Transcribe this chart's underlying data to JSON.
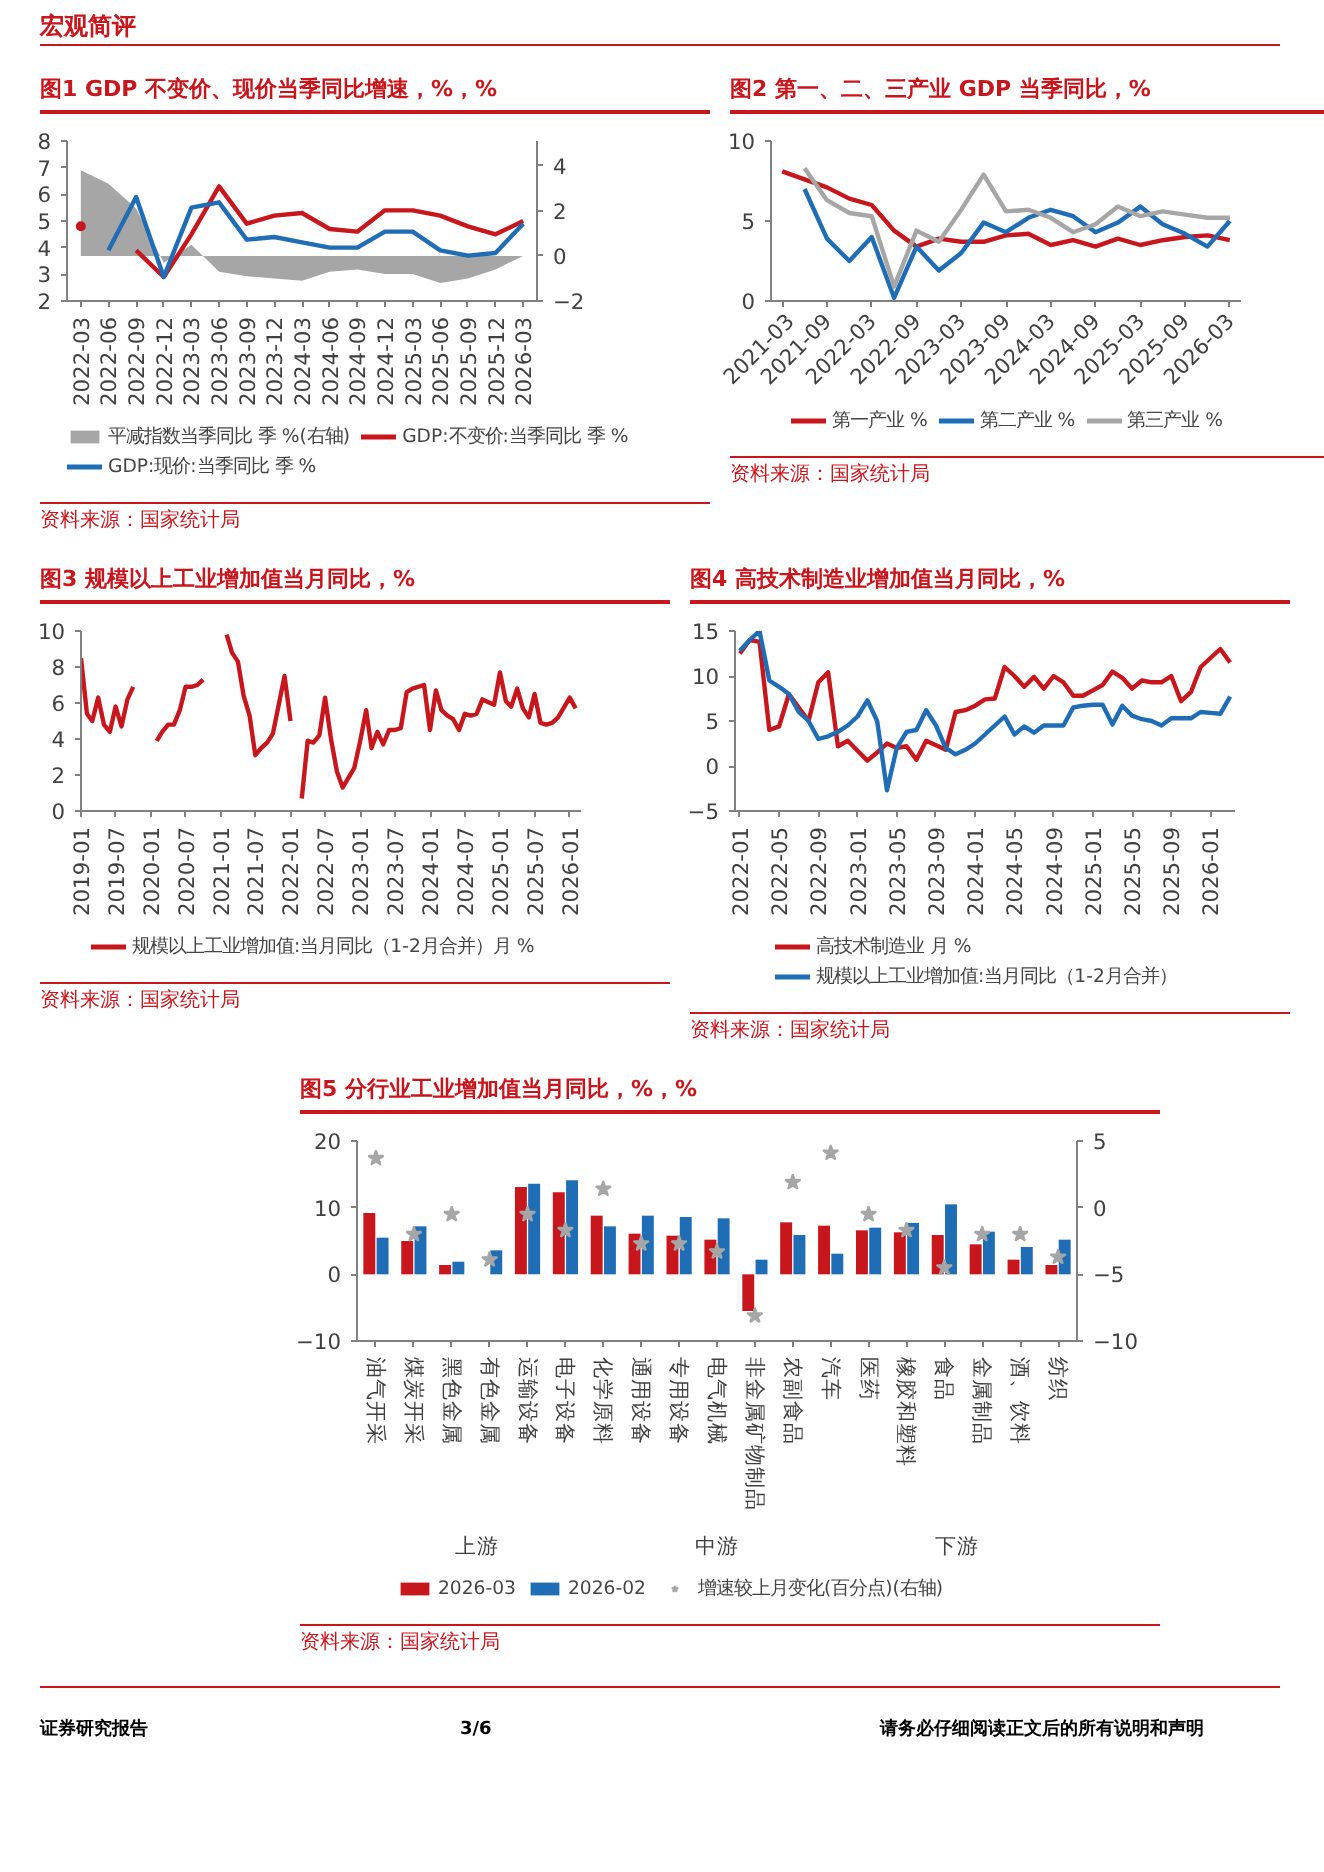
{
  "chart_data": [
    {
      "type": "line",
      "title": "图1 GDP 不变价、现价当季同比增速，%，%",
      "categories": [
        "2022-03",
        "2022-06",
        "2022-09",
        "2022-12",
        "2023-03",
        "2023-06",
        "2023-09",
        "2023-12",
        "2024-03",
        "2024-06",
        "2024-09",
        "2024-12",
        "2025-03",
        "2025-06",
        "2025-09",
        "2025-12",
        "2026-03"
      ],
      "series": [
        {
          "name": "平减指数当季同比 季 %(右轴)",
          "type": "area",
          "axis": "y2",
          "color": "#a6a6a6",
          "values": [
            3.8,
            3.2,
            2.1,
            -0.3,
            0.5,
            -0.7,
            -0.9,
            -1.0,
            -1.1,
            -0.7,
            -0.6,
            -0.8,
            -0.8,
            -1.2,
            -1.0,
            -0.6,
            0.0
          ]
        },
        {
          "name": "GDP:不变价:当季同比 季 %",
          "color": "#c8161d",
          "values": [
            4.8,
            null,
            3.9,
            2.9,
            4.5,
            6.3,
            4.9,
            5.2,
            5.3,
            4.7,
            4.6,
            5.4,
            5.4,
            5.2,
            4.8,
            4.5,
            5.0
          ]
        },
        {
          "name": "GDP:现价:当季同比 季 %",
          "color": "#1f6db5",
          "values": [
            null,
            3.9,
            5.9,
            2.9,
            5.5,
            5.7,
            4.3,
            4.4,
            4.2,
            4.0,
            4.0,
            4.6,
            4.6,
            3.9,
            3.7,
            3.8,
            4.9
          ]
        }
      ],
      "ylim": [
        2,
        8
      ],
      "yticks": [
        2,
        3,
        4,
        5,
        6,
        7,
        8
      ],
      "y2lim": [
        -2,
        5.1
      ],
      "y2ticks": [
        -2,
        0,
        2,
        4
      ],
      "legend": "bottom",
      "annotations": [
        "资料来源：国家统计局"
      ]
    },
    {
      "type": "line",
      "title": "图2 第一、二、三产业 GDP 当季同比，%",
      "categories": [
        "2021-03",
        null,
        "2021-09",
        null,
        "2022-03",
        null,
        "2022-09",
        null,
        "2023-03",
        null,
        "2023-09",
        null,
        "2024-03",
        null,
        "2024-09",
        null,
        "2025-03",
        null,
        "2025-09",
        null,
        "2026-03"
      ],
      "series": [
        {
          "name": "第一产业 %",
          "color": "#c8161d",
          "values": [
            8.1,
            7.6,
            7.1,
            6.4,
            6.0,
            4.4,
            3.4,
            3.9,
            3.7,
            3.7,
            4.1,
            4.2,
            3.5,
            3.8,
            3.4,
            3.9,
            3.5,
            3.8,
            4.0,
            4.1,
            3.8
          ]
        },
        {
          "name": "第二产业 %",
          "color": "#1f6db5",
          "values": [
            null,
            7.0,
            3.9,
            2.5,
            4.0,
            0.2,
            3.4,
            1.9,
            3.0,
            4.9,
            4.3,
            5.2,
            5.7,
            5.3,
            4.3,
            4.9,
            5.9,
            4.8,
            4.2,
            3.4,
            5.0
          ]
        },
        {
          "name": "第三产业 %",
          "color": "#a6a6a6",
          "values": [
            null,
            8.3,
            6.3,
            5.5,
            5.3,
            0.9,
            4.4,
            3.7,
            5.7,
            7.9,
            5.6,
            5.7,
            5.2,
            4.3,
            4.8,
            5.9,
            5.3,
            5.6,
            5.4,
            5.2,
            5.2
          ]
        }
      ],
      "ylim": [
        0,
        10
      ],
      "yticks": [
        0,
        5,
        10
      ],
      "legend": "bottom",
      "annotations": [
        "资料来源：国家统计局"
      ]
    },
    {
      "type": "line",
      "title": "图3 规模以上工业增加值当月同比，%",
      "x": [
        "2019-01",
        "2019-02",
        "2019-03",
        "2019-04",
        "2019-05",
        "2019-06",
        "2019-07",
        "2019-08",
        "2019-09",
        "2019-10",
        "2019-12",
        "2020-01",
        "2020-02",
        "2020-03",
        "2020-04",
        "2020-05",
        "2020-06",
        "2020-07",
        "2020-08",
        "2020-09",
        "2020-10",
        "2020-12",
        "2021-01",
        "2021-02",
        "2021-03",
        "2021-04",
        "2021-05",
        "2021-06",
        "2021-07",
        "2021-08",
        "2021-09",
        "2021-10",
        "2021-12",
        "2022-01",
        "2022-02",
        "2022-03",
        "2022-04",
        "2022-05",
        "2022-06",
        "2022-07",
        "2022-08",
        "2022-09",
        "2022-10",
        "2022-12",
        "2023-01",
        "2023-02",
        "2023-03",
        "2023-04",
        "2023-05",
        "2023-06",
        "2023-07",
        "2023-08",
        "2023-09",
        "2023-10",
        "2023-12",
        "2024-01",
        "2024-02",
        "2024-03",
        "2024-04",
        "2024-05",
        "2024-06",
        "2024-07",
        "2024-08",
        "2024-09",
        "2024-10",
        "2024-12",
        "2025-01",
        "2025-02",
        "2025-03",
        "2025-04",
        "2025-05",
        "2025-06",
        "2025-07",
        "2025-08",
        "2025-09",
        "2025-10",
        "2025-11",
        "2026-01",
        "2026-02"
      ],
      "series": [
        {
          "name": "规模以上工业增加值:当月同比（1-2月合并）月 %",
          "color": "#c8161d",
          "values": [
            8.5,
            5.4,
            5.0,
            6.3,
            4.8,
            4.4,
            5.8,
            4.7,
            6.2,
            6.9,
            null,
            null,
            3.9,
            4.4,
            4.8,
            4.8,
            5.6,
            6.9,
            6.9,
            7.0,
            7.3,
            null,
            null,
            9.8,
            8.8,
            8.3,
            6.4,
            5.3,
            3.1,
            3.5,
            3.8,
            4.3,
            7.5,
            5.0,
            null,
            0.7,
            3.9,
            3.8,
            4.2,
            6.3,
            4.0,
            2.2,
            1.3,
            2.4,
            3.9,
            5.6,
            3.5,
            4.4,
            3.7,
            4.5,
            4.5,
            4.6,
            6.6,
            6.8,
            7.0,
            4.5,
            6.7,
            5.6,
            5.3,
            5.1,
            4.5,
            5.4,
            5.3,
            5.4,
            6.2,
            5.9,
            7.7,
            6.1,
            5.8,
            6.8,
            5.7,
            5.2,
            6.5,
            4.9,
            4.8,
            4.9,
            5.2,
            6.3,
            5.7
          ]
        }
      ],
      "xlim": [
        "2019-01",
        "2026-03"
      ],
      "xticks": [
        "2019-01",
        "2019-07",
        "2020-01",
        "2020-07",
        "2021-01",
        "2021-07",
        "2022-01",
        "2022-07",
        "2023-01",
        "2023-07",
        "2024-01",
        "2024-07",
        "2025-01",
        "2025-07",
        "2026-01"
      ],
      "ylim": [
        0,
        10
      ],
      "yticks": [
        0,
        2,
        4,
        6,
        8,
        10
      ],
      "legend": "bottom",
      "annotations": [
        "资料来源：国家统计局"
      ]
    },
    {
      "type": "line",
      "title": "图4 高技术制造业增加值当月同比，%",
      "categories": [
        "2022-01",
        null,
        null,
        null,
        "2022-05",
        null,
        null,
        null,
        "2022-09",
        null,
        null,
        null,
        "2023-01",
        null,
        null,
        null,
        "2023-05",
        null,
        null,
        null,
        "2023-09",
        null,
        null,
        null,
        "2024-01",
        null,
        null,
        null,
        "2024-05",
        null,
        null,
        null,
        "2024-09",
        null,
        null,
        null,
        "2025-01",
        null,
        null,
        null,
        "2025-05",
        null,
        null,
        null,
        "2025-09",
        null,
        null,
        null,
        "2026-01",
        null,
        null
      ],
      "series": [
        {
          "name": "高技术制造业 月 %",
          "color": "#c8161d",
          "values": [
            12.5,
            14.0,
            13.8,
            4.0,
            4.4,
            8.0,
            6.5,
            5.0,
            9.3,
            10.4,
            2.2,
            2.8,
            1.7,
            0.6,
            1.5,
            2.5,
            2.0,
            2.2,
            0.7,
            2.8,
            2.3,
            1.8,
            6.0,
            6.2,
            6.7,
            7.4,
            7.5,
            11.0,
            10.0,
            8.8,
            9.9,
            8.6,
            10.0,
            9.3,
            7.8,
            7.8,
            8.4,
            9.0,
            10.5,
            9.8,
            8.6,
            9.5,
            9.3,
            9.3,
            10.0,
            7.2,
            8.2,
            11.0,
            12.0,
            13.0,
            11.5
          ]
        },
        {
          "name": "规模以上工业增加值:当月同比（1-2月合并）",
          "color": "#1f6db5",
          "values": [
            12.8,
            14.0,
            15.0,
            9.5,
            8.8,
            8.0,
            6.0,
            5.0,
            3.0,
            3.3,
            3.8,
            4.5,
            5.5,
            7.3,
            5.0,
            -2.7,
            2.0,
            3.8,
            4.0,
            6.2,
            4.5,
            2.0,
            1.3,
            1.8,
            2.5,
            3.5,
            4.5,
            5.5,
            3.5,
            4.4,
            3.7,
            4.5,
            4.5,
            4.5,
            6.5,
            6.7,
            6.8,
            6.8,
            4.6,
            6.7,
            5.6,
            5.2,
            5.0,
            4.5,
            5.3,
            5.3,
            5.3,
            6.0,
            5.9,
            5.8,
            7.7
          ]
        }
      ],
      "ylim": [
        -5,
        15
      ],
      "yticks": [
        -5,
        0,
        5,
        10,
        15
      ],
      "legend": "bottom",
      "annotations": [
        "资料来源：国家统计局"
      ]
    },
    {
      "type": "bar",
      "title": "图5 分行业工业增加值当月同比，%，%",
      "categories": [
        "油气开采",
        "煤炭开采",
        "黑色金属",
        "有色金属",
        "运输设备",
        "电子设备",
        "化学原料",
        "通用设备",
        "专用设备",
        "电气机械",
        "非金属矿物制品",
        "农副食品",
        "汽车",
        "医药",
        "橡胶和塑料",
        "食品",
        "金属制品",
        "酒、饮料",
        "纺织"
      ],
      "series": [
        {
          "name": "2026-03",
          "color": "#c8161d",
          "values": [
            9.2,
            5.0,
            1.4,
            0,
            13.1,
            12.3,
            8.8,
            6.1,
            5.8,
            5.2,
            -5.5,
            7.8,
            7.3,
            6.6,
            6.3,
            5.9,
            4.5,
            2.2,
            1.4
          ]
        },
        {
          "name": "2026-02",
          "color": "#1f6db5",
          "values": [
            5.5,
            7.2,
            1.9,
            3.6,
            13.6,
            14.1,
            7.2,
            8.8,
            8.6,
            8.4,
            2.2,
            5.9,
            3.1,
            7.0,
            7.7,
            10.5,
            6.4,
            4.1,
            5.2
          ]
        },
        {
          "name": "增速较上月变化(百分点)(右轴)",
          "type": "scatter",
          "axis": "y2",
          "color": "#a6a6a6",
          "values": [
            3.7,
            -2.0,
            -0.5,
            -3.9,
            -0.5,
            -1.7,
            1.4,
            -2.7,
            -2.7,
            -3.3,
            -8.1,
            1.9,
            4.1,
            -0.5,
            -1.7,
            -4.5,
            -2.0,
            -2.0,
            -3.7
          ]
        }
      ],
      "marker": "star",
      "ylim": [
        -10,
        20
      ],
      "yticks": [
        -10,
        0,
        10,
        20
      ],
      "y2lim": [
        -10,
        5
      ],
      "y2ticks": [
        -10,
        -5,
        0,
        5
      ],
      "legend": "bottom",
      "annotations": [
        "上游",
        "中游",
        "下游",
        "资料来源：国家统计局"
      ]
    },
    {
      "type": "other",
      "annotations": [
        "宏观简评",
        "证券研究报告",
        "3/6",
        "请务必仔细阅读正文后的所有说明和声明"
      ]
    }
  ]
}
